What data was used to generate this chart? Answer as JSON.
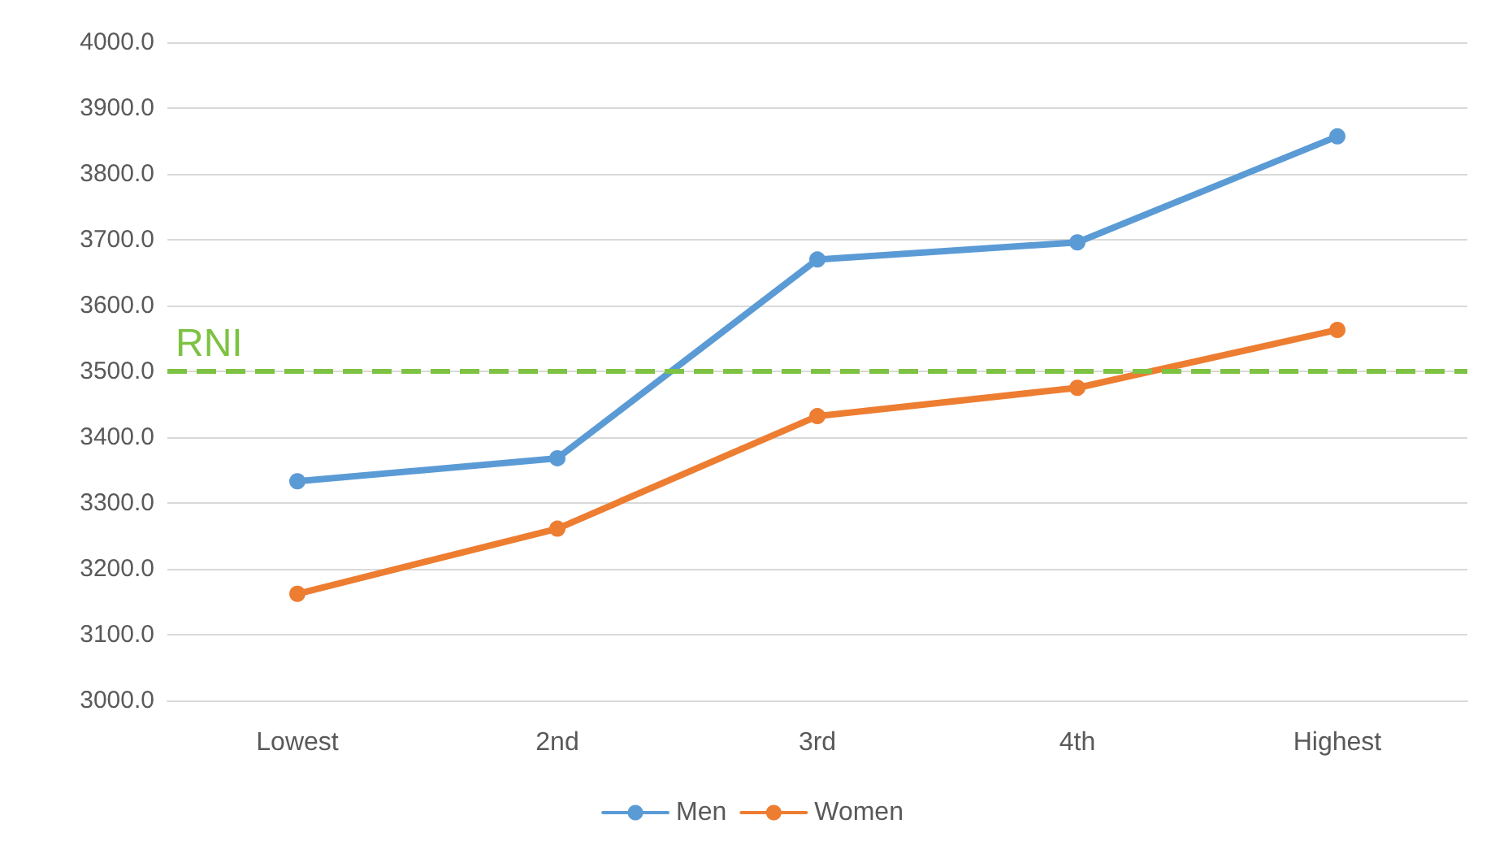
{
  "chart_data": {
    "type": "line",
    "categories": [
      "Lowest",
      "2nd",
      "3rd",
      "4th",
      "Highest"
    ],
    "series": [
      {
        "name": "Men",
        "color": "#5b9bd5",
        "values": [
          3333,
          3368,
          3670,
          3696,
          3857
        ]
      },
      {
        "name": "Women",
        "color": "#ed7d31",
        "values": [
          3162,
          3261,
          3432,
          3475,
          3563
        ]
      }
    ],
    "ylim": [
      3000,
      4000
    ],
    "yticks": [
      {
        "value": 3000,
        "label": "3000.0"
      },
      {
        "value": 3100,
        "label": "3100.0"
      },
      {
        "value": 3200,
        "label": "3200.0"
      },
      {
        "value": 3300,
        "label": "3300.0"
      },
      {
        "value": 3400,
        "label": "3400.0"
      },
      {
        "value": 3500,
        "label": "3500.0"
      },
      {
        "value": 3600,
        "label": "3600.0"
      },
      {
        "value": 3700,
        "label": "3700.0"
      },
      {
        "value": 3800,
        "label": "3800.0"
      },
      {
        "value": 3900,
        "label": "3900.0"
      },
      {
        "value": 4000,
        "label": "4000.0"
      }
    ],
    "ref_lines": [
      {
        "axis": "y",
        "value": 3500,
        "label": "RNI",
        "color": "#7dc242",
        "line_style": "dashed"
      }
    ],
    "grid": "y",
    "legend": "bottom",
    "marker": "circle",
    "line_style": "solid"
  }
}
